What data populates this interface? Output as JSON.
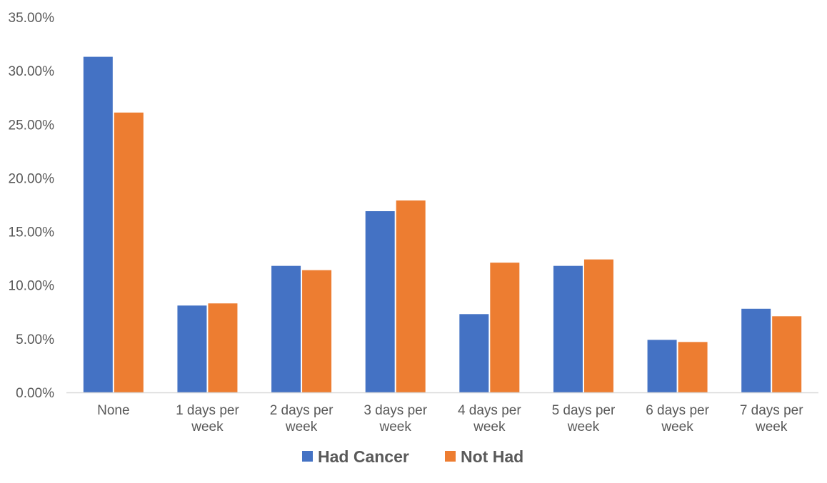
{
  "chart_data": {
    "type": "bar",
    "categories": [
      "None",
      "1 days per week",
      "2 days per week",
      "3 days per week",
      "4 days per week",
      "5 days per week",
      "6 days per week",
      "7 days per week"
    ],
    "category_lines": [
      [
        "None"
      ],
      [
        "1 days per",
        "week"
      ],
      [
        "2 days per",
        "week"
      ],
      [
        "3 days per",
        "week"
      ],
      [
        "4 days per",
        "week"
      ],
      [
        "5 days per",
        "week"
      ],
      [
        "6 days per",
        "week"
      ],
      [
        "7 days per",
        "week"
      ]
    ],
    "series": [
      {
        "name": "Had Cancer",
        "color": "#4472C4",
        "values": [
          31.3,
          8.1,
          11.8,
          16.9,
          7.3,
          11.8,
          4.9,
          7.8
        ]
      },
      {
        "name": "Not Had",
        "color": "#ED7D31",
        "values": [
          26.1,
          8.3,
          11.4,
          17.9,
          12.1,
          12.4,
          4.7,
          7.1
        ]
      }
    ],
    "y_ticks": [
      0,
      5,
      10,
      15,
      20,
      25,
      30,
      35
    ],
    "y_tick_labels": [
      "0.00%",
      "5.00%",
      "10.00%",
      "15.00%",
      "20.00%",
      "25.00%",
      "30.00%",
      "35.00%"
    ],
    "ylim": [
      0,
      35
    ],
    "grid": false,
    "legend_position": "bottom",
    "title": "",
    "xlabel": "",
    "ylabel": ""
  }
}
